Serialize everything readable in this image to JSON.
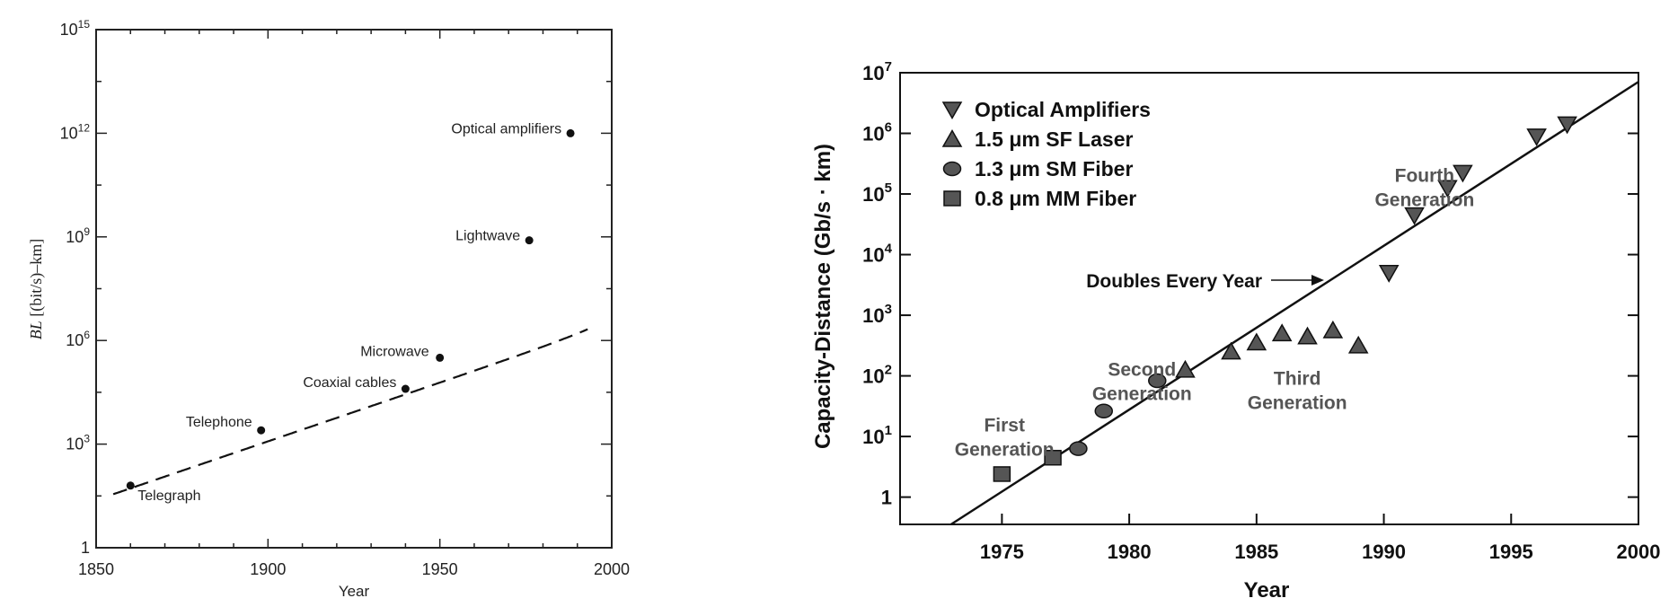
{
  "chart_data": [
    {
      "type": "scatter",
      "xlabel": "Year",
      "ylabel_italic": "BL",
      "ylabel_rest": " [(bit/s)–km]",
      "xlim": [
        1850,
        2000
      ],
      "ylim_log10": [
        0,
        15
      ],
      "xticks": [
        "1850",
        "1900",
        "1950",
        "2000"
      ],
      "yticks": [
        {
          "base": "1",
          "exp": ""
        },
        {
          "base": "10",
          "exp": "3"
        },
        {
          "base": "10",
          "exp": "6"
        },
        {
          "base": "10",
          "exp": "9"
        },
        {
          "base": "10",
          "exp": "12"
        },
        {
          "base": "10",
          "exp": "15"
        }
      ],
      "points": [
        {
          "label": "Telegraph",
          "x": 1860,
          "log10_y": 1.8
        },
        {
          "label": "Telephone",
          "x": 1898,
          "log10_y": 3.4
        },
        {
          "label": "Coaxial cables",
          "x": 1940,
          "log10_y": 4.6
        },
        {
          "label": "Microwave",
          "x": 1950,
          "log10_y": 5.5
        },
        {
          "label": "Lightwave",
          "x": 1976,
          "log10_y": 8.9
        },
        {
          "label": "Optical amplifiers",
          "x": 1988,
          "log10_y": 12.0
        }
      ],
      "trend": "dashed exponential curve",
      "grid": false
    },
    {
      "type": "scatter",
      "xlabel": "Year",
      "ylabel": "Capacity-Distance (Gb/s · km)",
      "xlim": [
        1971,
        2000
      ],
      "ylim_log10": [
        -0.45,
        7
      ],
      "xticks": [
        "1975",
        "1980",
        "1985",
        "1990",
        "1995",
        "2000"
      ],
      "yticks": [
        {
          "base": "1",
          "exp": ""
        },
        {
          "base": "10",
          "exp": "1"
        },
        {
          "base": "10",
          "exp": "2"
        },
        {
          "base": "10",
          "exp": "3"
        },
        {
          "base": "10",
          "exp": "4"
        },
        {
          "base": "10",
          "exp": "5"
        },
        {
          "base": "10",
          "exp": "6"
        },
        {
          "base": "10",
          "exp": "7"
        }
      ],
      "legend_position": "top-left",
      "series": [
        {
          "name": "Optical Amplifiers",
          "marker": "triangle-down",
          "x": [
            1990.2,
            1991.2,
            1992.5,
            1993.1,
            1996,
            1997.2
          ],
          "log10_y": [
            3.7,
            4.65,
            5.1,
            5.35,
            5.95,
            6.15
          ]
        },
        {
          "name": "1.5 μm SF Laser",
          "marker": "triangle-up",
          "x": [
            1982.2,
            1984,
            1985,
            1986,
            1987,
            1988,
            1989
          ],
          "log10_y": [
            2.1,
            2.4,
            2.55,
            2.7,
            2.65,
            2.75,
            2.5
          ]
        },
        {
          "name": "1.3 μm SM Fiber",
          "marker": "circle",
          "x": [
            1978,
            1979,
            1981.1
          ],
          "log10_y": [
            0.8,
            1.42,
            1.92
          ]
        },
        {
          "name": "0.8 μm MM Fiber",
          "marker": "square",
          "x": [
            1975,
            1977
          ],
          "log10_y": [
            0.38,
            0.65
          ]
        }
      ],
      "trend": {
        "label": "Doubles Every Year",
        "x": [
          1973,
          2000
        ],
        "log10_y": [
          -0.45,
          6.85
        ]
      },
      "annotations": [
        {
          "text": [
            "First",
            "Generation"
          ],
          "x": 1975.1,
          "log10_y": 1.08
        },
        {
          "text": [
            "Second",
            "Generation"
          ],
          "x": 1980.5,
          "log10_y": 2.0
        },
        {
          "text": [
            "Third",
            "Generation"
          ],
          "x": 1986.6,
          "log10_y": 1.85
        },
        {
          "text": [
            "Fourth",
            "Generation"
          ],
          "x": 1991.6,
          "log10_y": 5.2
        }
      ],
      "grid": false
    }
  ]
}
